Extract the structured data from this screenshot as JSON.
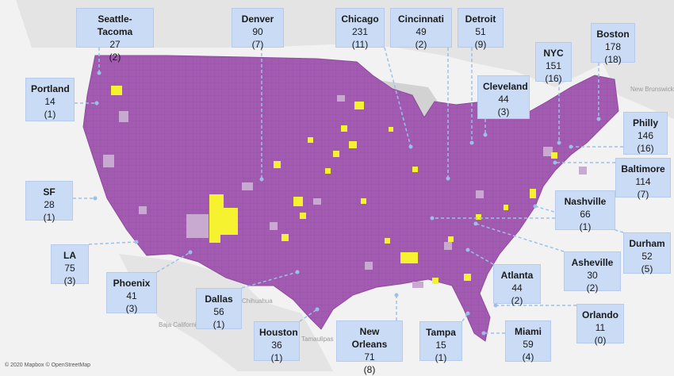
{
  "attribution": "© 2020 Mapbox © OpenStreetMap",
  "colors": {
    "county_fill": "#a25bb0",
    "highlight": "#f6f230",
    "light_county": "#c8a9cf",
    "label_bg": "#c9dbf5",
    "leader_line": "#9cc0e8",
    "background": "#f2f2f2"
  },
  "geo_labels": {
    "new_brunswick": "New Brunswick",
    "chihuahua": "Chihuahua",
    "baja_california_sur": "Baja California Sur",
    "tamaulipas": "Tamaulipas"
  },
  "markets": [
    {
      "key": "seattle",
      "city": "Seattle-Tacoma",
      "count": "27",
      "sub": "(2)"
    },
    {
      "key": "denver",
      "city": "Denver",
      "count": "90",
      "sub": "(7)"
    },
    {
      "key": "chicago",
      "city": "Chicago",
      "count": "231",
      "sub": "(11)"
    },
    {
      "key": "cincinnati",
      "city": "Cincinnati",
      "count": "49",
      "sub": "(2)"
    },
    {
      "key": "detroit",
      "city": "Detroit",
      "count": "51",
      "sub": "(9)"
    },
    {
      "key": "nyc",
      "city": "NYC",
      "count": "151",
      "sub": "(16)"
    },
    {
      "key": "boston",
      "city": "Boston",
      "count": "178",
      "sub": "(18)"
    },
    {
      "key": "portland",
      "city": "Portland",
      "count": "14",
      "sub": "(1)"
    },
    {
      "key": "cleveland",
      "city": "Cleveland",
      "count": "44",
      "sub": "(3)"
    },
    {
      "key": "philly",
      "city": "Philly",
      "count": "146",
      "sub": "(16)"
    },
    {
      "key": "baltimore",
      "city": "Baltimore",
      "count": "114",
      "sub": "(7)"
    },
    {
      "key": "sf",
      "city": "SF",
      "count": "28",
      "sub": "(1)"
    },
    {
      "key": "nashville",
      "city": "Nashville",
      "count": "66",
      "sub": "(1)"
    },
    {
      "key": "durham",
      "city": "Durham",
      "count": "52",
      "sub": "(5)"
    },
    {
      "key": "la",
      "city": "LA",
      "count": "75",
      "sub": "(3)"
    },
    {
      "key": "asheville",
      "city": "Asheville",
      "count": "30",
      "sub": "(2)"
    },
    {
      "key": "phoenix",
      "city": "Phoenix",
      "count": "41",
      "sub": "(3)"
    },
    {
      "key": "atlanta",
      "city": "Atlanta",
      "count": "44",
      "sub": "(2)"
    },
    {
      "key": "dallas",
      "city": "Dallas",
      "count": "56",
      "sub": "(1)"
    },
    {
      "key": "orlando",
      "city": "Orlando",
      "count": "11",
      "sub": "(0)"
    },
    {
      "key": "houston",
      "city": "Houston",
      "count": "36",
      "sub": "(1)"
    },
    {
      "key": "new_orleans",
      "city": "New Orleans",
      "count": "71",
      "sub": "(8)"
    },
    {
      "key": "tampa",
      "city": "Tampa",
      "count": "15",
      "sub": "(1)"
    },
    {
      "key": "miami",
      "city": "Miami",
      "count": "59",
      "sub": "(4)"
    }
  ]
}
